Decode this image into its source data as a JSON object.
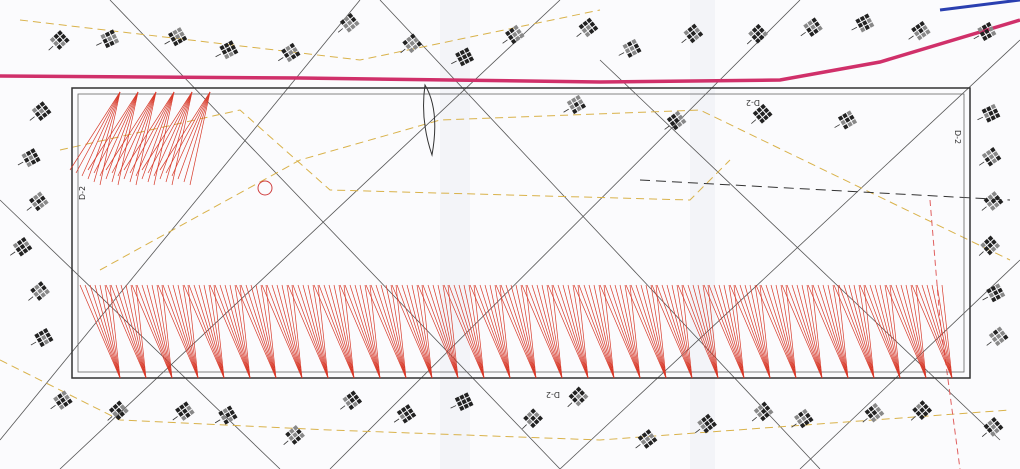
{
  "annotations": [
    "D-2",
    "D-2",
    "D-2",
    "D-2"
  ]
}
